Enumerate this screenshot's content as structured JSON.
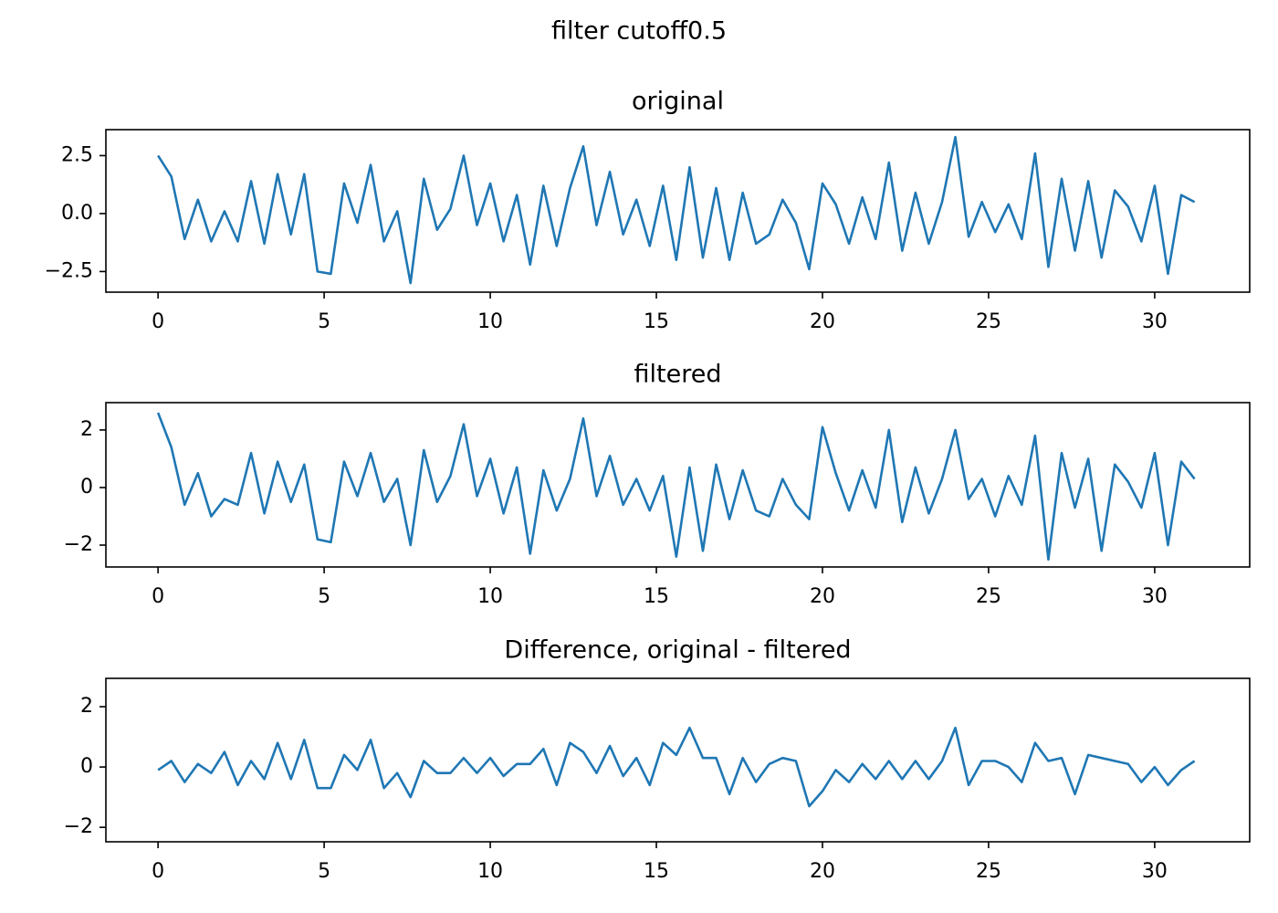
{
  "title": "filter cutoff0.5",
  "chart_data": [
    {
      "type": "line",
      "title": "original",
      "color": "#1f77b4",
      "x": [
        0,
        0.4,
        0.8,
        1.2,
        1.6,
        2,
        2.4,
        2.8,
        3.2,
        3.6,
        4,
        4.4,
        4.8,
        5.2,
        5.6,
        6,
        6.4,
        6.8,
        7.2,
        7.6,
        8,
        8.4,
        8.8,
        9.2,
        9.6,
        10,
        10.4,
        10.8,
        11.2,
        11.6,
        12,
        12.4,
        12.8,
        13.2,
        13.6,
        14,
        14.4,
        14.8,
        15.2,
        15.6,
        16,
        16.4,
        16.8,
        17.2,
        17.6,
        18,
        18.4,
        18.8,
        19.2,
        19.6,
        20,
        20.4,
        20.8,
        21.2,
        21.6,
        22,
        22.4,
        22.8,
        23.2,
        23.6,
        24,
        24.4,
        24.8,
        25.2,
        25.6,
        26,
        26.4,
        26.8,
        27.2,
        27.6,
        28,
        28.4,
        28.8,
        29.2,
        29.6,
        30,
        30.4,
        30.8,
        31.2
      ],
      "values": [
        2.5,
        1.6,
        -1.1,
        0.6,
        -1.2,
        0.1,
        -1.2,
        1.4,
        -1.3,
        1.7,
        -0.9,
        1.7,
        -2.5,
        -2.6,
        1.3,
        -0.4,
        2.1,
        -1.2,
        0.1,
        -3.0,
        1.5,
        -0.7,
        0.2,
        2.5,
        -0.5,
        1.3,
        -1.2,
        0.8,
        -2.2,
        1.2,
        -1.4,
        1.1,
        2.9,
        -0.5,
        1.8,
        -0.9,
        0.6,
        -1.4,
        1.2,
        -2.0,
        2.0,
        -1.9,
        1.1,
        -2.0,
        0.9,
        -1.3,
        -0.9,
        0.6,
        -0.4,
        -2.4,
        1.3,
        0.4,
        -1.3,
        0.7,
        -1.1,
        2.2,
        -1.6,
        0.9,
        -1.3,
        0.5,
        3.3,
        -1.0,
        0.5,
        -0.8,
        0.4,
        -1.1,
        2.6,
        -2.3,
        1.5,
        -1.6,
        1.4,
        -1.9,
        1.0,
        0.3,
        -1.2,
        1.2,
        -2.6,
        0.8,
        0.5
      ],
      "xlim": [
        -1.57,
        32.86
      ],
      "xticks": [
        0,
        5,
        10,
        15,
        20,
        25,
        30
      ],
      "ylim": [
        -3.39,
        3.62
      ],
      "yticks": [
        {
          "value": -2.5,
          "label": "−2.5"
        },
        {
          "value": 0,
          "label": "0.0"
        },
        {
          "value": 2.5,
          "label": "2.5"
        }
      ]
    },
    {
      "type": "line",
      "title": "filtered",
      "color": "#1f77b4",
      "x": [
        0,
        0.4,
        0.8,
        1.2,
        1.6,
        2,
        2.4,
        2.8,
        3.2,
        3.6,
        4,
        4.4,
        4.8,
        5.2,
        5.6,
        6,
        6.4,
        6.8,
        7.2,
        7.6,
        8,
        8.4,
        8.8,
        9.2,
        9.6,
        10,
        10.4,
        10.8,
        11.2,
        11.6,
        12,
        12.4,
        12.8,
        13.2,
        13.6,
        14,
        14.4,
        14.8,
        15.2,
        15.6,
        16,
        16.4,
        16.8,
        17.2,
        17.6,
        18,
        18.4,
        18.8,
        19.2,
        19.6,
        20,
        20.4,
        20.8,
        21.2,
        21.6,
        22,
        22.4,
        22.8,
        23.2,
        23.6,
        24,
        24.4,
        24.8,
        25.2,
        25.6,
        26,
        26.4,
        26.8,
        27.2,
        27.6,
        28,
        28.4,
        28.8,
        29.2,
        29.6,
        30,
        30.4,
        30.8,
        31.2
      ],
      "values": [
        2.6,
        1.4,
        -0.6,
        0.5,
        -1.0,
        -0.4,
        -0.6,
        1.2,
        -0.9,
        0.9,
        -0.5,
        0.8,
        -1.8,
        -1.9,
        0.9,
        -0.3,
        1.2,
        -0.5,
        0.3,
        -2.0,
        1.3,
        -0.5,
        0.4,
        2.2,
        -0.3,
        1.0,
        -0.9,
        0.7,
        -2.3,
        0.6,
        -0.8,
        0.3,
        2.4,
        -0.3,
        1.1,
        -0.6,
        0.3,
        -0.8,
        0.4,
        -2.4,
        0.7,
        -2.2,
        0.8,
        -1.1,
        0.6,
        -0.8,
        -1.0,
        0.3,
        -0.6,
        -1.1,
        2.1,
        0.5,
        -0.8,
        0.6,
        -0.7,
        2.0,
        -1.2,
        0.7,
        -0.9,
        0.3,
        2.0,
        -0.4,
        0.3,
        -1.0,
        0.4,
        -0.6,
        1.8,
        -2.5,
        1.2,
        -0.7,
        1.0,
        -2.2,
        0.8,
        0.2,
        -0.7,
        1.2,
        -2.0,
        0.9,
        0.3
      ],
      "xlim": [
        -1.57,
        32.86
      ],
      "xticks": [
        0,
        5,
        10,
        15,
        20,
        25,
        30
      ],
      "ylim": [
        -2.76,
        2.95
      ],
      "yticks": [
        {
          "value": -2,
          "label": "−2"
        },
        0,
        2
      ]
    },
    {
      "type": "line",
      "title": "Difference, original - filtered",
      "color": "#1f77b4",
      "x": [
        0,
        0.4,
        0.8,
        1.2,
        1.6,
        2,
        2.4,
        2.8,
        3.2,
        3.6,
        4,
        4.4,
        4.8,
        5.2,
        5.6,
        6,
        6.4,
        6.8,
        7.2,
        7.6,
        8,
        8.4,
        8.8,
        9.2,
        9.6,
        10,
        10.4,
        10.8,
        11.2,
        11.6,
        12,
        12.4,
        12.8,
        13.2,
        13.6,
        14,
        14.4,
        14.8,
        15.2,
        15.6,
        16,
        16.4,
        16.8,
        17.2,
        17.6,
        18,
        18.4,
        18.8,
        19.2,
        19.6,
        20,
        20.4,
        20.8,
        21.2,
        21.6,
        22,
        22.4,
        22.8,
        23.2,
        23.6,
        24,
        24.4,
        24.8,
        25.2,
        25.6,
        26,
        26.4,
        26.8,
        27.2,
        27.6,
        28,
        28.4,
        28.8,
        29.2,
        29.6,
        30,
        30.4,
        30.8,
        31.2
      ],
      "values": [
        -0.1,
        0.2,
        -0.5,
        0.1,
        -0.2,
        0.5,
        -0.6,
        0.2,
        -0.4,
        0.8,
        -0.4,
        0.9,
        -0.7,
        -0.7,
        0.4,
        -0.1,
        0.9,
        -0.7,
        -0.2,
        -1.0,
        0.2,
        -0.2,
        -0.2,
        0.3,
        -0.2,
        0.3,
        -0.3,
        0.1,
        0.1,
        0.6,
        -0.6,
        0.8,
        0.5,
        -0.2,
        0.7,
        -0.3,
        0.3,
        -0.6,
        0.8,
        0.4,
        1.3,
        0.3,
        0.3,
        -0.9,
        0.3,
        -0.5,
        0.1,
        0.3,
        0.2,
        -1.3,
        -0.8,
        -0.1,
        -0.5,
        0.1,
        -0.4,
        0.2,
        -0.4,
        0.2,
        -0.4,
        0.2,
        1.3,
        -0.6,
        0.2,
        0.2,
        0,
        -0.5,
        0.8,
        0.2,
        0.3,
        -0.9,
        0.4,
        0.3,
        0.2,
        0.1,
        -0.5,
        0,
        -0.6,
        -0.1,
        0.2
      ],
      "xlim": [
        -1.57,
        32.86
      ],
      "xticks": [
        0,
        5,
        10,
        15,
        20,
        25,
        30
      ],
      "ylim": [
        -2.48,
        2.94
      ],
      "yticks": [
        {
          "value": -2,
          "label": "−2"
        },
        0,
        2
      ]
    }
  ]
}
